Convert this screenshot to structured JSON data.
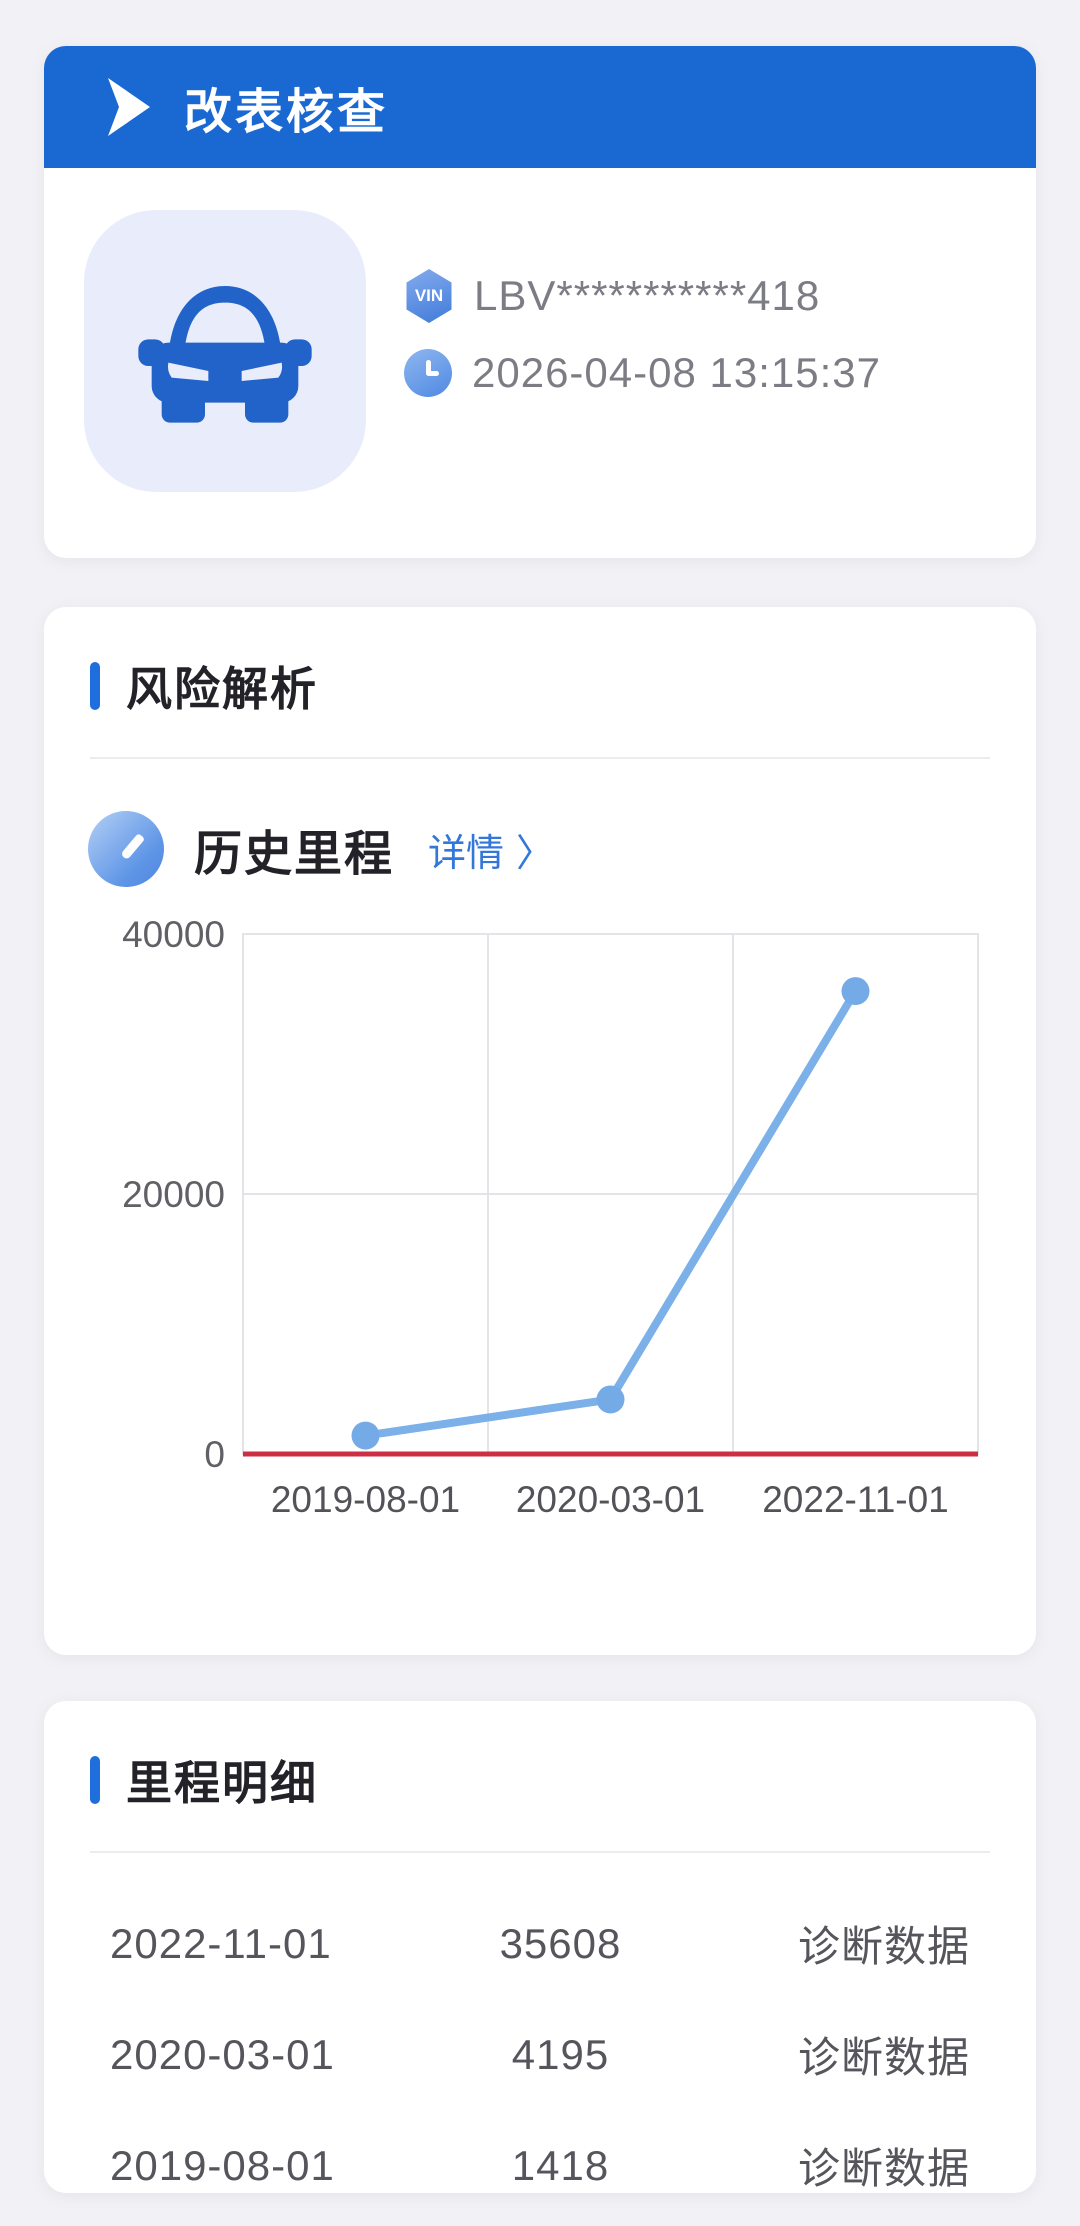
{
  "page": {
    "background": "#f2f1f5",
    "accent_blue": "#1a69d2",
    "link_blue": "#3377d8"
  },
  "header_card": {
    "banner": {
      "title": "改表核查",
      "bg": "#1a69d2"
    },
    "vehicle": {
      "vin_badge_label": "VIN",
      "vin": "LBV***********418",
      "report_time": "2026-04-08 13:15:37"
    }
  },
  "risk_section": {
    "title": "风险解析",
    "mileage_block": {
      "title": "历史里程",
      "detail_label": "详情",
      "chevron": "〉"
    }
  },
  "chart_data": {
    "type": "line",
    "x": [
      "2019-08-01",
      "2020-03-01",
      "2022-11-01"
    ],
    "values": [
      1418,
      4195,
      35608
    ],
    "yticks": [
      0,
      20000,
      40000
    ],
    "ylim": [
      0,
      40000
    ],
    "grid": true,
    "legend": null,
    "line_color": "#7bb0e8",
    "point_color": "#74abe6",
    "zero_line_color": "#cc2f44",
    "grid_color": "#e4e4e8",
    "ytick_color": "#606066",
    "xtick_color": "#525258"
  },
  "detail_section": {
    "title": "里程明细",
    "rows": [
      {
        "date": "2022-11-01",
        "mileage": "35608",
        "source": "诊断数据"
      },
      {
        "date": "2020-03-01",
        "mileage": "4195",
        "source": "诊断数据"
      },
      {
        "date": "2019-08-01",
        "mileage": "1418",
        "source": "诊断数据"
      }
    ]
  }
}
